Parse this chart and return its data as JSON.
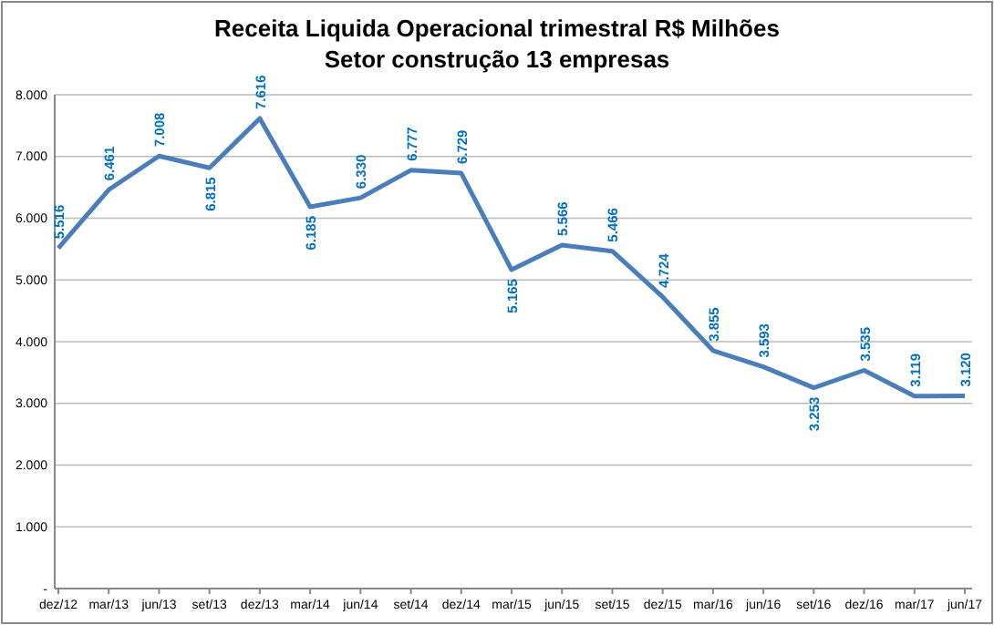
{
  "chart_data": {
    "type": "line",
    "title": "Receita Liquida Operacional trimestral  R$ Milhões",
    "subtitle": "Setor construção 13 empresas",
    "categories": [
      "dez/12",
      "mar/13",
      "jun/13",
      "set/13",
      "dez/13",
      "mar/14",
      "jun/14",
      "set/14",
      "dez/14",
      "mar/15",
      "jun/15",
      "set/15",
      "dez/15",
      "mar/16",
      "jun/16",
      "set/16",
      "dez/16",
      "mar/17",
      "jun/17"
    ],
    "series": [
      {
        "color": "#4a7ebb",
        "values": [
          5516,
          6461,
          7008,
          6815,
          7616,
          6185,
          6330,
          6777,
          6729,
          5165,
          5566,
          5466,
          4724,
          3855,
          3593,
          3253,
          3535,
          3119,
          3120
        ],
        "value_labels": [
          "5.516",
          "6.461",
          "7.008",
          "6.815",
          "7.616",
          "6.185",
          "6.330",
          "6.777",
          "6.729",
          "5.165",
          "5.566",
          "5.466",
          "4.724",
          "3.855",
          "3.593",
          "3.253",
          "3.535",
          "3.119",
          "3.120"
        ]
      }
    ],
    "ylim": [
      0,
      8000
    ],
    "yticks": [
      {
        "value": 0,
        "label": "-"
      },
      {
        "value": 1000,
        "label": "1.000"
      },
      {
        "value": 2000,
        "label": "2.000"
      },
      {
        "value": 3000,
        "label": "3.000"
      },
      {
        "value": 4000,
        "label": "4.000"
      },
      {
        "value": 5000,
        "label": "5.000"
      },
      {
        "value": 6000,
        "label": "6.000"
      },
      {
        "value": 7000,
        "label": "7.000"
      },
      {
        "value": 8000,
        "label": "8.000"
      }
    ],
    "grid": "y",
    "marker": "none",
    "line_style": "solid"
  }
}
